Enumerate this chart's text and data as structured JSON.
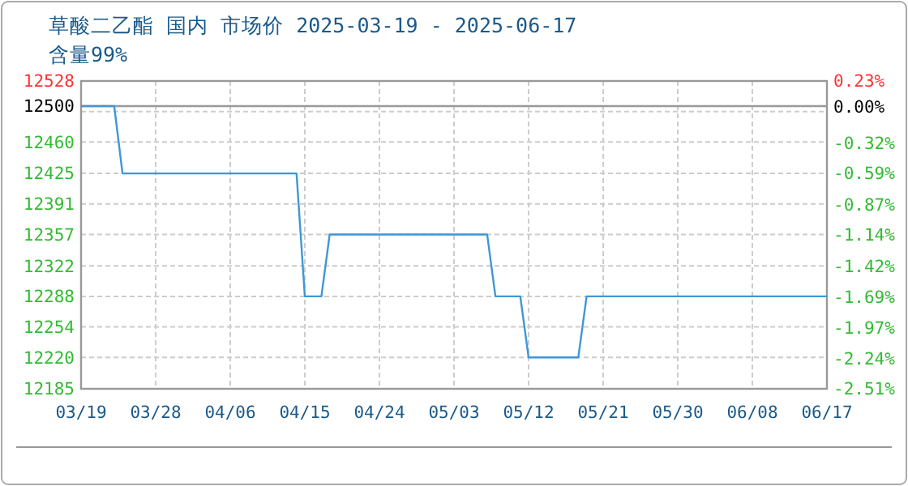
{
  "chart_data": {
    "type": "line",
    "title": "草酸二乙酯 国内 市场价 2025-03-19 - 2025-06-17",
    "subtitle": "含量99%",
    "x": [
      "2025-03-19",
      "2025-03-23",
      "2025-03-24",
      "2025-04-14",
      "2025-04-15",
      "2025-04-17",
      "2025-04-18",
      "2025-05-07",
      "2025-05-08",
      "2025-05-11",
      "2025-05-12",
      "2025-05-18",
      "2025-05-19",
      "2025-06-17"
    ],
    "series": [
      {
        "color": "#3f97d6",
        "values": [
          12500,
          12500,
          12425,
          12425,
          12288,
          12288,
          12357,
          12357,
          12288,
          12288,
          12220,
          12220,
          12288,
          12288
        ]
      }
    ],
    "xlim": [
      "2025-03-19",
      "2025-06-17"
    ],
    "xticks": [
      {
        "value": "2025-03-19",
        "label": "03/19"
      },
      {
        "value": "2025-03-28",
        "label": "03/28"
      },
      {
        "value": "2025-04-06",
        "label": "04/06"
      },
      {
        "value": "2025-04-15",
        "label": "04/15"
      },
      {
        "value": "2025-04-24",
        "label": "04/24"
      },
      {
        "value": "2025-05-03",
        "label": "05/03"
      },
      {
        "value": "2025-05-12",
        "label": "05/12"
      },
      {
        "value": "2025-05-21",
        "label": "05/21"
      },
      {
        "value": "2025-05-30",
        "label": "05/30"
      },
      {
        "value": "2025-06-08",
        "label": "06/08"
      },
      {
        "value": "2025-06-17",
        "label": "06/17"
      }
    ],
    "ylim": [
      12185,
      12528
    ],
    "yticks": [
      12185,
      12220,
      12254,
      12288,
      12322,
      12357,
      12391,
      12425,
      12460,
      {
        "value": 12494,
        "label": null
      },
      12528
    ],
    "y2lim": [
      -2.51,
      0.23
    ],
    "y2ticks": [
      {
        "value": -2.51,
        "label": "-2.51%"
      },
      {
        "value": -2.24,
        "label": "-2.24%"
      },
      {
        "value": -1.97,
        "label": "-1.97%"
      },
      {
        "value": -1.69,
        "label": "-1.69%"
      },
      {
        "value": -1.42,
        "label": "-1.42%"
      },
      {
        "value": -1.14,
        "label": "-1.14%"
      },
      {
        "value": -0.87,
        "label": "-0.87%"
      },
      {
        "value": -0.59,
        "label": "-0.59%"
      },
      {
        "value": -0.32,
        "label": "-0.32%"
      },
      {
        "value": 0,
        "label": "0.00%"
      },
      {
        "value": 0.23,
        "label": "0.23%"
      }
    ],
    "ref_lines": [
      {
        "axis": "y",
        "value": 12500,
        "label": "12500",
        "color": "#999999"
      }
    ],
    "grid": true,
    "marker": "none",
    "line_style": "solid"
  }
}
